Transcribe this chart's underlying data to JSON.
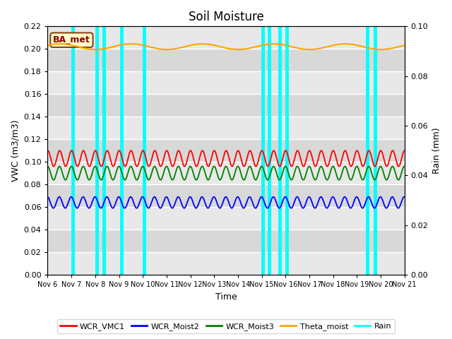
{
  "title": "Soil Moisture",
  "ylabel_left": "VWC (m3/m3)",
  "ylabel_right": "Rain (mm)",
  "xlabel": "Time",
  "ylim_left": [
    0.0,
    0.22
  ],
  "ylim_right": [
    0.0,
    0.1
  ],
  "xtick_labels": [
    "Nov 6",
    "Nov 7",
    "Nov 8",
    "Nov 9",
    "Nov 10",
    "Nov 11",
    "Nov 12",
    "Nov 13",
    "Nov 14",
    "Nov 15",
    "Nov 16",
    "Nov 17",
    "Nov 18",
    "Nov 19",
    "Nov 20",
    "Nov 21"
  ],
  "annotation_text": "BA_met",
  "annotation_color": "#8B0000",
  "annotation_bg": "#FFFFCC",
  "annotation_border": "#8B4513",
  "rain_color": "cyan",
  "rain_events": [
    1.05,
    2.05,
    2.35,
    3.1,
    4.05,
    9.05,
    9.3,
    9.75,
    10.05,
    13.45,
    13.75
  ],
  "rain_linewidth": 3.5,
  "wcr_vmc1_color": "red",
  "wcr_moist2_color": "blue",
  "wcr_moist3_color": "green",
  "theta_moist_color": "orange",
  "wcr_vmc1_base": 0.103,
  "wcr_vmc1_amp": 0.007,
  "wcr_moist2_base": 0.064,
  "wcr_moist2_amp": 0.005,
  "wcr_moist3_base": 0.09,
  "wcr_moist3_amp": 0.006,
  "theta_moist_base": 0.202,
  "theta_moist_amp": 0.0025,
  "num_points": 7200,
  "period_days": 0.5,
  "band_colors": [
    "#E8E8E8",
    "#D8D8D8"
  ],
  "grid_line_color": "white",
  "legend_labels": [
    "WCR_VMC1",
    "WCR_Moist2",
    "WCR_Moist3",
    "Theta_moist",
    "Rain"
  ],
  "linewidth": 1.3
}
